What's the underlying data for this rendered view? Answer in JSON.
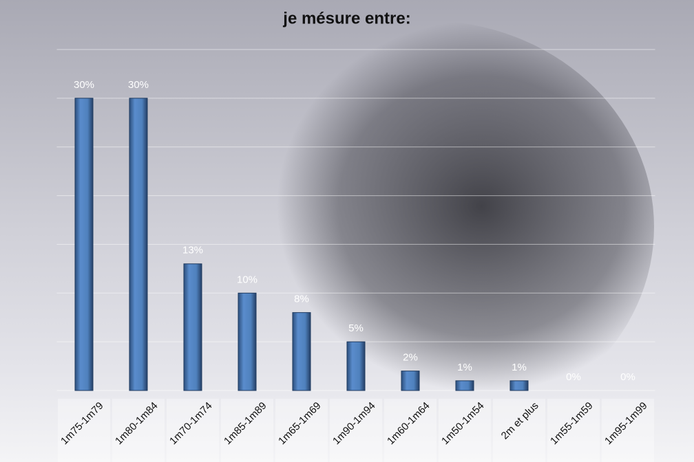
{
  "chart_data": {
    "type": "bar",
    "title": "je mésure entre:",
    "categories": [
      "1m75-1m79",
      "1m80-1m84",
      "1m70-1m74",
      "1m85-1m89",
      "1m65-1m69",
      "1m90-1m94",
      "1m60-1m64",
      "1m50-1m54",
      "2m et plus",
      "1m55-1m59",
      "1m95-1m99"
    ],
    "values": [
      30,
      30,
      13,
      10,
      8,
      5,
      2,
      1,
      1,
      0,
      0
    ],
    "value_labels": [
      "30%",
      "30%",
      "13%",
      "10%",
      "8%",
      "5%",
      "2%",
      "1%",
      "1%",
      "0%",
      "0%"
    ],
    "color": "#4f81bd",
    "ylim": [
      0,
      35
    ],
    "yticks": [
      0,
      5,
      10,
      15,
      20,
      25,
      30,
      35
    ],
    "grid": true
  }
}
